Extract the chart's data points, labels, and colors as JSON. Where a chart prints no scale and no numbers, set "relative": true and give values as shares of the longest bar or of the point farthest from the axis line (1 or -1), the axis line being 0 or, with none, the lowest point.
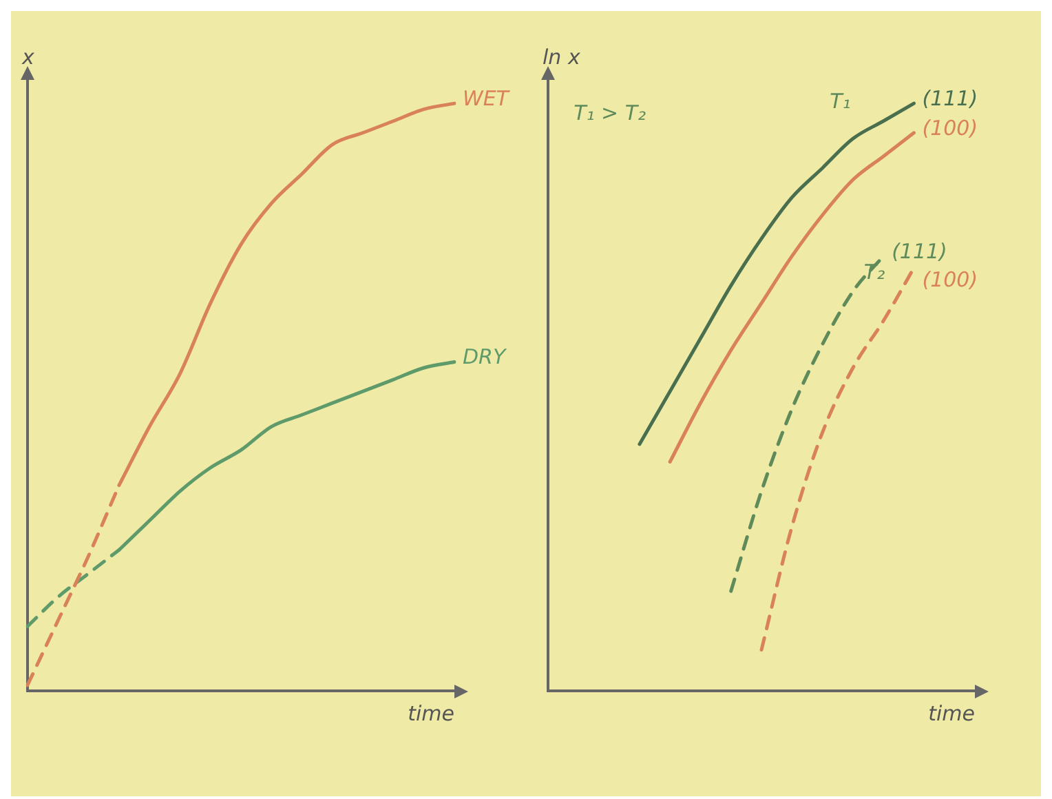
{
  "chart_data": [
    {
      "type": "line",
      "xlabel": "time",
      "ylabel": "x",
      "relative": true,
      "grid": false,
      "legend": false,
      "marker": "none",
      "categories": [
        null,
        null,
        null,
        null,
        null,
        null,
        null,
        null,
        null,
        null,
        null,
        null,
        null,
        null,
        null
      ],
      "series": [
        {
          "name": "WET",
          "color": "#d9825a",
          "line_style": "solid",
          "values": [
            null,
            null,
            null,
            0.35,
            0.45,
            0.54,
            0.66,
            0.76,
            0.83,
            0.88,
            0.93,
            0.95,
            0.97,
            0.99,
            1
          ]
        },
        {
          "color": "#d9825a",
          "line_style": "dashed",
          "values": [
            0.01,
            0.12,
            0.23,
            0.35,
            null,
            null,
            null,
            null,
            null,
            null,
            null,
            null,
            null,
            null,
            null
          ]
        },
        {
          "name": "DRY",
          "color": "#5f9a6a",
          "line_style": "solid",
          "values": [
            null,
            null,
            null,
            0.24,
            0.29,
            0.34,
            0.38,
            0.41,
            0.45,
            0.47,
            0.49,
            0.51,
            0.53,
            0.55,
            0.56
          ]
        },
        {
          "color": "#5f9a6a",
          "line_style": "dashed",
          "values": [
            0.11,
            0.16,
            0.2,
            0.24,
            null,
            null,
            null,
            null,
            null,
            null,
            null,
            null,
            null,
            null,
            null
          ]
        }
      ]
    },
    {
      "type": "line",
      "xlabel": "time",
      "ylabel": "ln x",
      "relative": true,
      "grid": false,
      "legend": false,
      "marker": "none",
      "annotations": [
        "T₁ > T₂",
        "T₁",
        "T₂"
      ],
      "categories": [
        null,
        null,
        null,
        null,
        null,
        null,
        null,
        null,
        null,
        null,
        null,
        null,
        null,
        null,
        null
      ],
      "series": [
        {
          "name": "(111)",
          "color": "#4a6f4f",
          "line_style": "solid",
          "values": [
            null,
            null,
            null,
            0.42,
            0.51,
            0.6,
            0.69,
            0.77,
            0.84,
            0.89,
            0.94,
            0.97,
            1,
            null,
            null
          ]
        },
        {
          "name": "(100)",
          "color": "#d9825a",
          "line_style": "solid",
          "values": [
            null,
            null,
            null,
            null,
            0.39,
            0.49,
            0.58,
            0.66,
            0.74,
            0.81,
            0.87,
            0.91,
            0.95,
            null,
            null
          ]
        },
        {
          "name": "(111)",
          "color": "#5f8a5a",
          "line_style": "dashed",
          "values": [
            null,
            null,
            null,
            null,
            null,
            null,
            0.17,
            0.34,
            0.48,
            0.59,
            0.68,
            0.74,
            null,
            null,
            null
          ]
        },
        {
          "name": "(100)",
          "color": "#d9825a",
          "line_style": "dashed",
          "values": [
            null,
            null,
            null,
            null,
            null,
            null,
            null,
            0.07,
            0.28,
            0.44,
            0.55,
            0.63,
            0.72,
            null,
            null
          ]
        }
      ]
    }
  ]
}
